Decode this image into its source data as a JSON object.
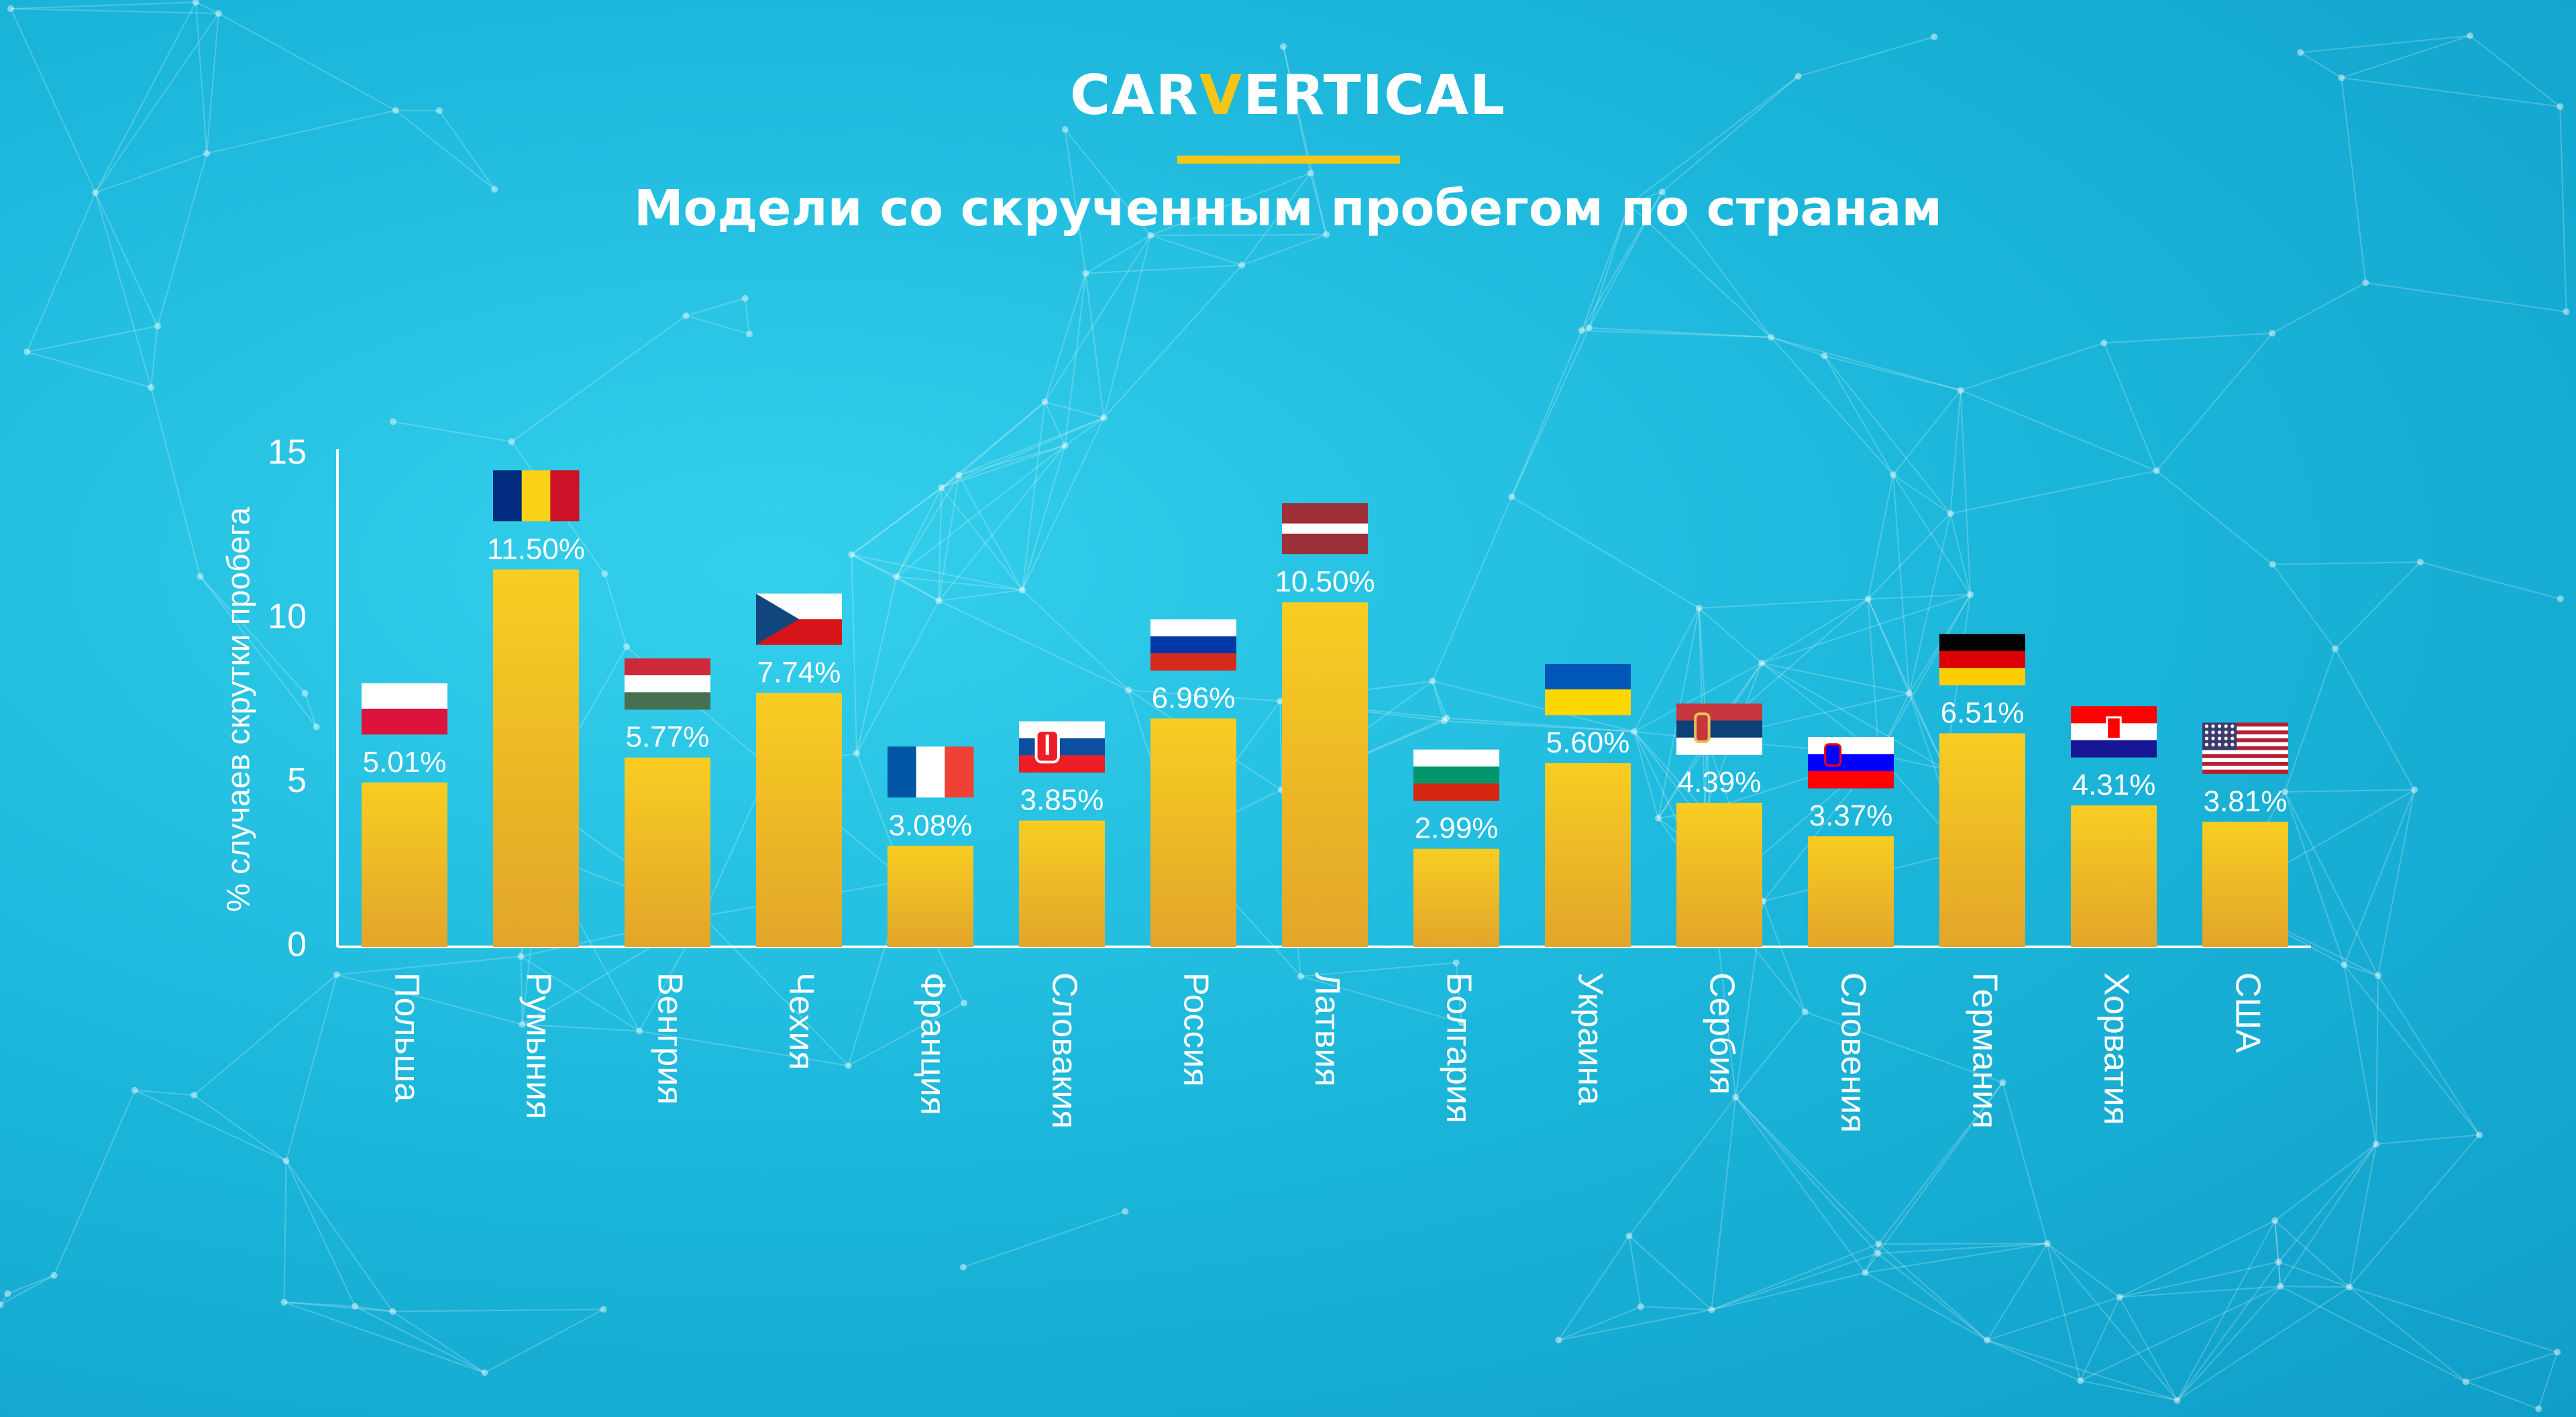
{
  "header": {
    "logo_left": "CAR",
    "logo_mark": "V",
    "logo_right": "ERTICAL",
    "title": "Модели со скрученным пробегом по странам"
  },
  "colors": {
    "background": "#1db8dc",
    "bar": "#f5c518",
    "bar_bottom": "#e0a020",
    "text": "#ffffff"
  },
  "chart_data": {
    "type": "bar",
    "title": "Модели со скрученным пробегом по странам",
    "xlabel": "",
    "ylabel": "% случаев скрутки пробега",
    "ylim": [
      0,
      15
    ],
    "yticks": [
      0,
      5,
      10,
      15
    ],
    "grid": false,
    "categories": [
      "Польша",
      "Румыния",
      "Венгрия",
      "Чехия",
      "Франция",
      "Словакия",
      "Россия",
      "Латвия",
      "Болгария",
      "Украина",
      "Сербия",
      "Словения",
      "Германия",
      "Хорватия",
      "США"
    ],
    "values": [
      5.01,
      11.5,
      5.77,
      7.74,
      3.08,
      3.85,
      6.96,
      10.5,
      2.99,
      5.6,
      4.39,
      3.37,
      6.51,
      4.31,
      3.81
    ],
    "value_labels": [
      "5.01%",
      "11.50%",
      "5.77%",
      "7.74%",
      "3.08%",
      "3.85%",
      "6.96%",
      "10.50%",
      "2.99%",
      "5.60%",
      "4.39%",
      "3.37%",
      "6.51%",
      "4.31%",
      "3.81%"
    ],
    "flags": [
      "flag-poland-icon",
      "flag-romania-icon",
      "flag-hungary-icon",
      "flag-czechia-icon",
      "flag-france-icon",
      "flag-slovakia-icon",
      "flag-russia-icon",
      "flag-latvia-icon",
      "flag-bulgaria-icon",
      "flag-ukraine-icon",
      "flag-serbia-icon",
      "flag-slovenia-icon",
      "flag-germany-icon",
      "flag-croatia-icon",
      "flag-usa-icon"
    ]
  }
}
